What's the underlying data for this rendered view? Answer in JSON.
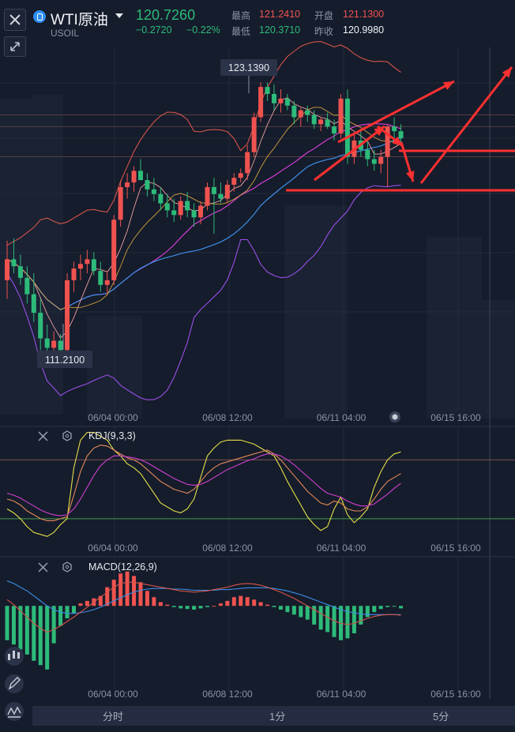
{
  "header": {
    "symbol_name": "WTI原油",
    "symbol_code": "USOIL",
    "last_price": "120.7260",
    "change": "−0.2720",
    "change_pct": "−0.22%",
    "high_label": "最高",
    "high_value": "121.2410",
    "open_label": "开盘",
    "open_value": "121.1300",
    "low_label": "最低",
    "low_value": "120.3710",
    "prev_close_label": "昨收",
    "prev_close_value": "120.9980"
  },
  "colors": {
    "up": "#ef5350",
    "down": "#2dbb7a",
    "bg": "#151c2b",
    "boll_upper": "#d4544a",
    "boll_lower": "#9a4fe8",
    "ma_blue": "#3d8ee8",
    "ma_magenta": "#e040e0",
    "kdj_k": "#e6e04a",
    "kdj_d": "#e48a5a",
    "kdj_j": "#d040d0",
    "annotation": "#ff3030"
  },
  "icons": [
    "close-icon",
    "collapse-icon",
    "symbol-icon",
    "chevron-down-icon",
    "hexagon-settings-icon",
    "candles-icon",
    "pencil-icon",
    "indicator-icon"
  ],
  "chart_data": [
    {
      "type": "candlestick",
      "title": "",
      "x_ticks": [
        "06/04 00:00",
        "06/08 12:00",
        "06/11 04:00",
        "06/15 16:00"
      ],
      "max_label": "123.1390",
      "min_label": "111.2100",
      "ylim": [
        109.0,
        124.6
      ],
      "reference_lines": [
        121.7,
        121.2,
        119.9
      ],
      "candles": [
        [
          114.6,
          116.3,
          113.8,
          115.5
        ],
        [
          115.5,
          116.4,
          114.9,
          115.2
        ],
        [
          115.2,
          115.7,
          114.4,
          114.7
        ],
        [
          114.7,
          115.2,
          113.6,
          114.0
        ],
        [
          114.0,
          114.9,
          112.8,
          113.2
        ],
        [
          113.2,
          113.8,
          111.6,
          112.1
        ],
        [
          112.1,
          112.7,
          111.2,
          111.7
        ],
        [
          111.7,
          112.4,
          111.4,
          112.0
        ],
        [
          112.0,
          112.3,
          111.3,
          111.6
        ],
        [
          111.6,
          114.9,
          111.4,
          114.6
        ],
        [
          114.6,
          115.4,
          114.1,
          115.1
        ],
        [
          115.1,
          115.7,
          114.6,
          115.3
        ],
        [
          115.3,
          115.9,
          114.9,
          115.5
        ],
        [
          115.5,
          115.8,
          114.8,
          115.0
        ],
        [
          115.0,
          115.4,
          114.1,
          114.4
        ],
        [
          114.4,
          115.0,
          114.0,
          114.6
        ],
        [
          114.6,
          117.4,
          114.4,
          117.2
        ],
        [
          117.2,
          118.9,
          116.9,
          118.6
        ],
        [
          118.6,
          119.2,
          118.1,
          118.8
        ],
        [
          118.8,
          119.5,
          118.4,
          119.3
        ],
        [
          119.3,
          119.8,
          118.9,
          118.9
        ],
        [
          118.9,
          119.2,
          118.2,
          118.5
        ],
        [
          118.5,
          119.0,
          118.0,
          118.3
        ],
        [
          118.3,
          118.6,
          117.6,
          117.9
        ],
        [
          117.9,
          118.3,
          117.3,
          117.6
        ],
        [
          117.6,
          118.1,
          117.1,
          117.4
        ],
        [
          117.4,
          118.2,
          117.2,
          118.0
        ],
        [
          118.0,
          118.4,
          117.3,
          117.6
        ],
        [
          117.6,
          117.9,
          116.9,
          117.3
        ],
        [
          117.3,
          118.0,
          117.0,
          117.8
        ],
        [
          117.8,
          118.8,
          117.6,
          118.6
        ],
        [
          118.6,
          119.0,
          116.6,
          118.3
        ],
        [
          118.3,
          118.8,
          117.9,
          118.1
        ],
        [
          118.1,
          118.9,
          117.9,
          118.7
        ],
        [
          118.7,
          119.2,
          118.4,
          119.0
        ],
        [
          119.0,
          119.4,
          118.8,
          119.2
        ],
        [
          119.2,
          120.4,
          118.9,
          120.1
        ],
        [
          120.1,
          121.8,
          119.9,
          121.6
        ],
        [
          121.6,
          123.1,
          121.4,
          122.9
        ],
        [
          122.9,
          123.1,
          122.3,
          122.6
        ],
        [
          122.6,
          123.0,
          121.9,
          122.2
        ],
        [
          122.2,
          122.8,
          121.8,
          122.4
        ],
        [
          122.4,
          122.6,
          121.9,
          122.1
        ],
        [
          122.1,
          122.3,
          121.3,
          121.6
        ],
        [
          121.6,
          122.0,
          121.2,
          121.9
        ],
        [
          121.9,
          122.1,
          121.4,
          121.7
        ],
        [
          121.7,
          121.9,
          121.1,
          121.3
        ],
        [
          121.3,
          121.6,
          121.0,
          121.5
        ],
        [
          121.5,
          121.8,
          121.1,
          121.2
        ],
        [
          121.2,
          121.5,
          120.6,
          120.9
        ],
        [
          120.9,
          122.6,
          120.7,
          122.4
        ],
        [
          122.4,
          122.8,
          119.6,
          119.9
        ],
        [
          119.9,
          120.9,
          119.6,
          120.6
        ],
        [
          120.6,
          121.1,
          119.9,
          120.2
        ],
        [
          120.2,
          120.6,
          119.5,
          119.8
        ],
        [
          119.8,
          120.2,
          119.3,
          119.6
        ],
        [
          119.6,
          120.2,
          119.2,
          119.9
        ],
        [
          119.9,
          121.3,
          118.6,
          121.2
        ],
        [
          121.2,
          121.6,
          120.7,
          121.0
        ],
        [
          121.0,
          121.3,
          120.4,
          120.7
        ]
      ]
    },
    {
      "type": "line",
      "title": "KDJ(9,3,3)",
      "x_ticks": [
        "06/04 00:00",
        "06/08 12:00",
        "06/11 04:00",
        "06/15 16:00"
      ],
      "reference_levels": [
        80,
        20
      ],
      "ylim": [
        -5,
        110
      ],
      "series_k": [
        40,
        38,
        34,
        28,
        24,
        20,
        18,
        18,
        20,
        22,
        44,
        68,
        84,
        92,
        95,
        94,
        90,
        86,
        82,
        80,
        76,
        70,
        64,
        58,
        54,
        50,
        48,
        46,
        50,
        58,
        66,
        72,
        76,
        78,
        80,
        82,
        84,
        86,
        88,
        90,
        86,
        80,
        72,
        64,
        56,
        48,
        42,
        36,
        34,
        38,
        36,
        30,
        28,
        28,
        32,
        40,
        50,
        58,
        62,
        66
      ],
      "series_d": [
        46,
        44,
        41,
        37,
        33,
        29,
        26,
        24,
        23,
        24,
        30,
        40,
        52,
        64,
        74,
        80,
        84,
        84,
        83,
        82,
        80,
        77,
        73,
        69,
        65,
        61,
        58,
        55,
        54,
        55,
        58,
        62,
        66,
        70,
        73,
        76,
        79,
        81,
        84,
        86,
        86,
        84,
        80,
        75,
        69,
        63,
        57,
        51,
        46,
        44,
        42,
        38,
        35,
        33,
        33,
        35,
        40,
        45,
        51,
        56
      ],
      "series_j": [
        30,
        26,
        20,
        12,
        6,
        4,
        2,
        6,
        14,
        20,
        72,
        100,
        108,
        108,
        104,
        100,
        90,
        84,
        76,
        72,
        66,
        56,
        46,
        36,
        32,
        28,
        26,
        30,
        40,
        62,
        84,
        92,
        98,
        100,
        100,
        100,
        98,
        96,
        92,
        88,
        84,
        72,
        58,
        46,
        34,
        22,
        14,
        8,
        12,
        30,
        42,
        24,
        16,
        22,
        30,
        52,
        68,
        80,
        86,
        88
      ]
    },
    {
      "type": "bar+line",
      "title": "MACD(12,26,9)",
      "x_ticks": [
        "06/04 00:00",
        "06/08 12:00",
        "06/11 04:00",
        "06/15 16:00"
      ],
      "ylim": [
        -1.25,
        0.7
      ],
      "histogram": [
        -0.55,
        -0.62,
        -0.7,
        -0.78,
        -0.88,
        -0.95,
        -1.02,
        -0.6,
        -0.32,
        -0.2,
        -0.12,
        0.04,
        0.08,
        0.12,
        0.16,
        0.3,
        0.42,
        0.52,
        0.55,
        0.48,
        0.38,
        0.24,
        0.14,
        0.06,
        0.02,
        -0.02,
        -0.04,
        -0.05,
        -0.06,
        -0.04,
        -0.02,
        0.0,
        0.04,
        0.08,
        0.14,
        0.16,
        0.14,
        0.1,
        0.06,
        0.02,
        -0.02,
        -0.06,
        -0.1,
        -0.14,
        -0.18,
        -0.22,
        -0.3,
        -0.38,
        -0.42,
        -0.5,
        -0.55,
        -0.52,
        -0.44,
        -0.3,
        -0.18,
        -0.1,
        -0.05,
        -0.02,
        -0.01,
        -0.04
      ],
      "series_dif": [
        0.1,
        0.02,
        -0.08,
        -0.18,
        -0.28,
        -0.36,
        -0.42,
        -0.38,
        -0.32,
        -0.25,
        -0.18,
        -0.1,
        -0.02,
        0.06,
        0.14,
        0.22,
        0.3,
        0.36,
        0.38,
        0.38,
        0.36,
        0.34,
        0.32,
        0.3,
        0.28,
        0.26,
        0.24,
        0.23,
        0.22,
        0.23,
        0.24,
        0.26,
        0.28,
        0.3,
        0.33,
        0.35,
        0.36,
        0.35,
        0.33,
        0.3,
        0.26,
        0.22,
        0.17,
        0.12,
        0.06,
        0.0,
        -0.06,
        -0.12,
        -0.18,
        -0.24,
        -0.28,
        -0.3,
        -0.28,
        -0.24,
        -0.2,
        -0.17,
        -0.15,
        -0.14,
        -0.14,
        -0.15
      ],
      "series_dea": [
        0.4,
        0.36,
        0.3,
        0.24,
        0.16,
        0.08,
        0.0,
        -0.06,
        -0.1,
        -0.12,
        -0.12,
        -0.11,
        -0.09,
        -0.06,
        -0.02,
        0.03,
        0.08,
        0.13,
        0.18,
        0.22,
        0.25,
        0.27,
        0.28,
        0.28,
        0.28,
        0.27,
        0.27,
        0.26,
        0.25,
        0.25,
        0.25,
        0.25,
        0.26,
        0.26,
        0.27,
        0.28,
        0.29,
        0.29,
        0.29,
        0.29,
        0.28,
        0.26,
        0.24,
        0.21,
        0.18,
        0.14,
        0.1,
        0.06,
        0.02,
        -0.02,
        -0.06,
        -0.09,
        -0.11,
        -0.13,
        -0.14,
        -0.14,
        -0.14,
        -0.14,
        -0.14,
        -0.14
      ]
    }
  ],
  "bottom_tabs": [
    "分时",
    "1分",
    "5分"
  ]
}
